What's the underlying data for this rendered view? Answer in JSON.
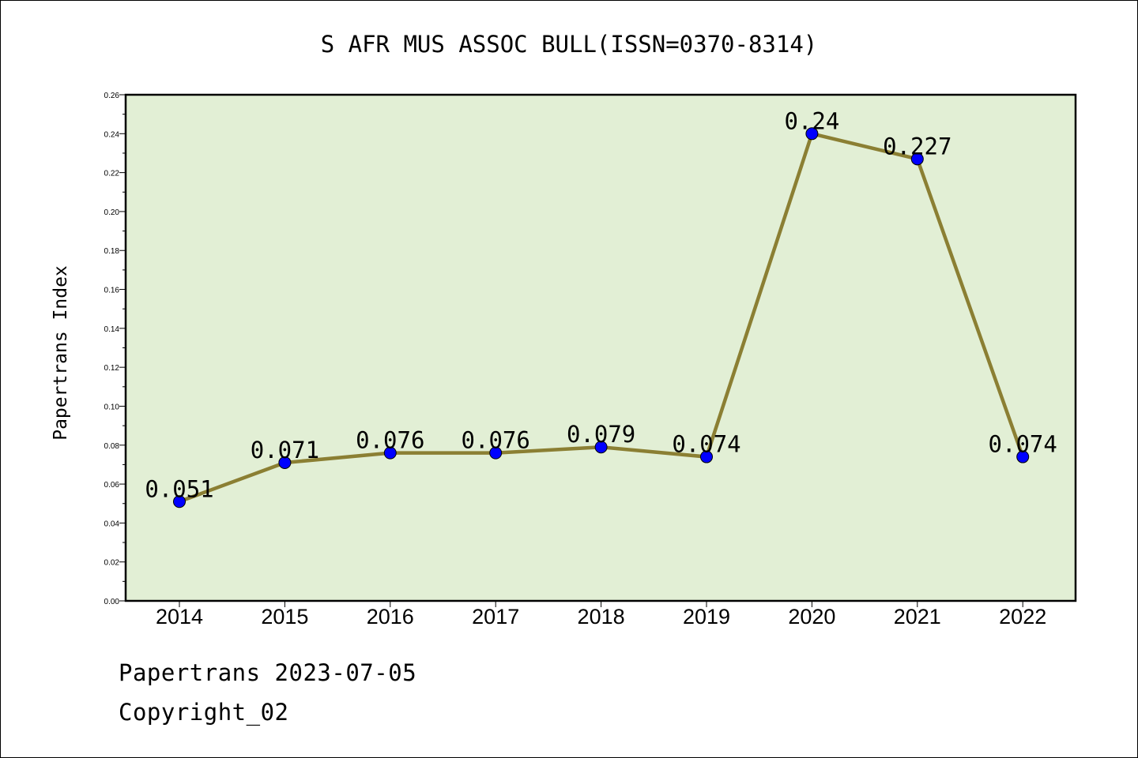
{
  "chart_data": {
    "type": "line",
    "title": "S AFR MUS ASSOC BULL(ISSN=0370-8314)",
    "xlabel": "",
    "ylabel": "Papertrans Index",
    "categories": [
      "2014",
      "2015",
      "2016",
      "2017",
      "2018",
      "2019",
      "2020",
      "2021",
      "2022"
    ],
    "series": [
      {
        "values": [
          0.051,
          0.071,
          0.076,
          0.076,
          0.079,
          0.074,
          0.24,
          0.227,
          0.074
        ],
        "labels": [
          "0.051",
          "0.071",
          "0.076",
          "0.076",
          "0.079",
          "0.074",
          "0.24",
          "0.227",
          "0.074"
        ]
      }
    ],
    "ylim": [
      0,
      0.26
    ],
    "yticks": [
      "0.00",
      "0.02",
      "0.04",
      "0.06",
      "0.08",
      "0.10",
      "0.12",
      "0.14",
      "0.16",
      "0.18",
      "0.20",
      "0.22",
      "0.24",
      "0.26"
    ],
    "grid": false,
    "colors": {
      "plot_background": "#e2efd5",
      "line": "#8b7f33",
      "marker": "#0000ff"
    }
  },
  "footer": {
    "date_line": "Papertrans 2023-07-05",
    "copyright_line": "Copyright_02"
  }
}
